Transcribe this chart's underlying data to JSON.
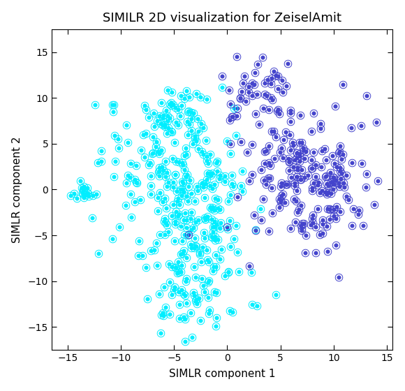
{
  "title": "SIMILR 2D visualization for ZeiselAmit",
  "xlabel": "SIMLR component 1",
  "ylabel": "SIMLR component 2",
  "xlim": [
    -16.5,
    15.5
  ],
  "ylim": [
    -17.5,
    17.5
  ],
  "xticks": [
    -15,
    -10,
    -5,
    0,
    5,
    10,
    15
  ],
  "yticks": [
    -15,
    -10,
    -5,
    0,
    5,
    10,
    15
  ],
  "cluster1_color": "#00EEFF",
  "cluster2_color": "#4444CC",
  "background_color": "#FFFFFF",
  "title_fontsize": 13,
  "label_fontsize": 11,
  "tick_fontsize": 10,
  "seed": 99,
  "n1": 380,
  "n2": 250,
  "marker_size": 4,
  "ring_ratio": 1.9,
  "edge_width": 0.7
}
